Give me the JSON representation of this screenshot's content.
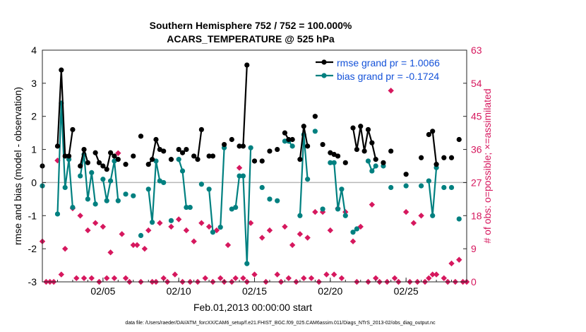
{
  "chart_data": {
    "type": "scatter",
    "title": "Southern Hemisphere 752 / 752 = 100.000%",
    "subtitle": "ACARS_TEMPERATURE @ 525 hPa",
    "xlabel": "Feb.01,2013 00:00:00 start",
    "ylabel": "rmse and bias (model - observation)",
    "ylabel_right": "# of obs: o=possible; ×=assimilated",
    "footnote": "data file: /Users/raeder/DAI/ATM_forcXX/CAM6_setup/f.e21.FHIST_BGC.f09_025.CAM6assim.011/Diags_NTrS_2013-02/obs_diag_output.nc",
    "xlim": [
      1,
      29
    ],
    "ylim": [
      -3,
      4
    ],
    "ylim_right": [
      0,
      63
    ],
    "grid": false,
    "legend_position": "top-right",
    "x_ticks": [
      {
        "x": 5,
        "label": "02/05"
      },
      {
        "x": 10,
        "label": "02/10"
      },
      {
        "x": 15,
        "label": "02/15"
      },
      {
        "x": 20,
        "label": "02/20"
      },
      {
        "x": 25,
        "label": "02/25"
      }
    ],
    "y_ticks": [
      -3,
      -2,
      -1,
      0,
      1,
      2,
      3,
      4
    ],
    "y_ticks_right": [
      0,
      9,
      18,
      27,
      36,
      45,
      54,
      63
    ],
    "colors": {
      "rmse": "#000000",
      "bias": "#008080",
      "obs": "#d6185e",
      "zero_line": "#b8b8b8"
    },
    "series": [
      {
        "name": "rmse grand pr = 1.0066",
        "marker": "dot",
        "values": [
          [
            1.0,
            0.5
          ],
          [
            2.0,
            1.1
          ],
          [
            2.25,
            3.4
          ],
          [
            2.5,
            0.8
          ],
          [
            2.75,
            0.8
          ],
          [
            3.0,
            1.6
          ],
          [
            3.5,
            0.5
          ],
          [
            3.75,
            1.0
          ],
          [
            4.0,
            0.6
          ],
          [
            4.5,
            0.9
          ],
          [
            4.75,
            0.6
          ],
          [
            5.0,
            0.5
          ],
          [
            5.25,
            0.4
          ],
          [
            5.5,
            0.9
          ],
          [
            5.75,
            0.8
          ],
          [
            6.0,
            0.7
          ],
          [
            6.5,
            0.55
          ],
          [
            7.0,
            0.8
          ],
          [
            7.5,
            1.4
          ],
          [
            8.0,
            0.55
          ],
          [
            8.25,
            0.7
          ],
          [
            8.5,
            1.3
          ],
          [
            8.75,
            1.0
          ],
          [
            9.0,
            0.95
          ],
          [
            9.5,
            0.7
          ],
          [
            10.0,
            1.0
          ],
          [
            10.25,
            0.9
          ],
          [
            10.5,
            1.0
          ],
          [
            11.0,
            0.8
          ],
          [
            11.25,
            0.7
          ],
          [
            11.5,
            1.6
          ],
          [
            12.0,
            0.8
          ],
          [
            12.25,
            0.8
          ],
          [
            13.0,
            1.15
          ],
          [
            13.5,
            1.3
          ],
          [
            14.0,
            1.1
          ],
          [
            14.25,
            1.1
          ],
          [
            14.5,
            3.55
          ],
          [
            15.0,
            0.65
          ],
          [
            15.5,
            0.65
          ],
          [
            16.0,
            0.95
          ],
          [
            16.5,
            1.0
          ],
          [
            17.0,
            1.5
          ],
          [
            17.25,
            1.3
          ],
          [
            17.5,
            1.3
          ],
          [
            18.0,
            0.7
          ],
          [
            18.25,
            1.7
          ],
          [
            18.5,
            1.1
          ],
          [
            19.0,
            2.0
          ],
          [
            19.5,
            1.15
          ],
          [
            20.0,
            0.9
          ],
          [
            20.25,
            0.85
          ],
          [
            20.5,
            0.8
          ],
          [
            21.0,
            0.6
          ],
          [
            21.5,
            1.65
          ],
          [
            21.75,
            1.0
          ],
          [
            22.0,
            1.7
          ],
          [
            22.25,
            0.95
          ],
          [
            22.5,
            1.6
          ],
          [
            22.75,
            1.2
          ],
          [
            23.0,
            0.7
          ],
          [
            23.5,
            0.6
          ],
          [
            24.0,
            0.95
          ],
          [
            25.0,
            0.25
          ],
          [
            26.0,
            0.75
          ],
          [
            26.5,
            1.45
          ],
          [
            26.75,
            1.55
          ],
          [
            27.0,
            0.55
          ],
          [
            27.5,
            0.75
          ],
          [
            28.0,
            0.75
          ],
          [
            28.5,
            1.3
          ]
        ]
      },
      {
        "name": "bias grand pr = -0.1724",
        "marker": "dot",
        "values": [
          [
            1.0,
            -0.1
          ],
          [
            2.0,
            -0.95
          ],
          [
            2.25,
            2.4
          ],
          [
            2.5,
            -0.15
          ],
          [
            2.75,
            0.7
          ],
          [
            3.0,
            -0.75
          ],
          [
            3.5,
            0.2
          ],
          [
            3.75,
            0.85
          ],
          [
            4.0,
            -0.5
          ],
          [
            4.25,
            0.3
          ],
          [
            4.5,
            -0.65
          ],
          [
            5.0,
            0.1
          ],
          [
            5.25,
            -0.55
          ],
          [
            5.5,
            0.05
          ],
          [
            5.75,
            0.65
          ],
          [
            6.0,
            -0.55
          ],
          [
            6.5,
            -0.35
          ],
          [
            7.0,
            -0.4
          ],
          [
            7.5,
            -1.6
          ],
          [
            8.0,
            -0.2
          ],
          [
            8.25,
            -1.2
          ],
          [
            8.5,
            0.65
          ],
          [
            8.75,
            0.05
          ],
          [
            9.0,
            0.0
          ],
          [
            9.5,
            -1.15
          ],
          [
            10.0,
            0.7
          ],
          [
            10.25,
            0.35
          ],
          [
            10.5,
            -0.75
          ],
          [
            10.75,
            -0.75
          ],
          [
            11.5,
            -0.05
          ],
          [
            12.0,
            -0.2
          ],
          [
            12.25,
            -1.5
          ],
          [
            12.75,
            -1.35
          ],
          [
            13.0,
            1.05
          ],
          [
            13.5,
            -0.8
          ],
          [
            13.75,
            -0.75
          ],
          [
            14.0,
            0.2
          ],
          [
            14.25,
            0.2
          ],
          [
            14.5,
            -2.45
          ],
          [
            14.75,
            1.05
          ],
          [
            15.5,
            -0.15
          ],
          [
            16.0,
            -0.5
          ],
          [
            16.5,
            -0.55
          ],
          [
            17.0,
            1.25
          ],
          [
            17.25,
            1.25
          ],
          [
            17.5,
            1.1
          ],
          [
            18.0,
            -1.0
          ],
          [
            18.25,
            1.45
          ],
          [
            18.5,
            0.1
          ],
          [
            19.0,
            1.55
          ],
          [
            19.5,
            -0.8
          ],
          [
            20.0,
            0.6
          ],
          [
            20.25,
            0.6
          ],
          [
            20.5,
            -0.8
          ],
          [
            20.75,
            -0.2
          ],
          [
            21.0,
            -1.0
          ],
          [
            21.5,
            -1.5
          ],
          [
            21.75,
            -1.4
          ],
          [
            22.5,
            0.65
          ],
          [
            22.75,
            0.35
          ],
          [
            23.0,
            0.5
          ],
          [
            23.5,
            0.5
          ],
          [
            24.0,
            -0.15
          ],
          [
            25.0,
            -0.1
          ],
          [
            26.0,
            -0.1
          ],
          [
            26.5,
            0.05
          ],
          [
            26.75,
            -1.0
          ],
          [
            27.0,
            0.45
          ],
          [
            27.5,
            -0.15
          ],
          [
            28.0,
            -0.15
          ],
          [
            28.5,
            -1.1
          ]
        ]
      },
      {
        "name": "possible obs",
        "marker": "o",
        "axis": "right",
        "values": []
      },
      {
        "name": "assimilated obs",
        "marker": "x",
        "axis": "right",
        "values": [
          [
            1.0,
            11
          ],
          [
            1.25,
            0
          ],
          [
            1.5,
            0
          ],
          [
            1.75,
            0
          ],
          [
            2.0,
            33
          ],
          [
            2.25,
            2
          ],
          [
            2.5,
            9
          ],
          [
            3.0,
            20
          ],
          [
            3.25,
            1
          ],
          [
            3.5,
            18
          ],
          [
            3.75,
            1
          ],
          [
            4.0,
            14
          ],
          [
            4.25,
            1
          ],
          [
            4.5,
            16
          ],
          [
            4.75,
            0
          ],
          [
            5.0,
            15
          ],
          [
            5.25,
            1
          ],
          [
            5.5,
            8
          ],
          [
            5.75,
            1
          ],
          [
            6.0,
            35
          ],
          [
            6.25,
            13
          ],
          [
            6.5,
            1
          ],
          [
            6.75,
            0
          ],
          [
            7.0,
            10
          ],
          [
            7.25,
            10
          ],
          [
            7.5,
            0
          ],
          [
            7.75,
            9
          ],
          [
            8.0,
            14
          ],
          [
            8.25,
            0
          ],
          [
            8.5,
            0
          ],
          [
            8.75,
            16
          ],
          [
            9.0,
            1
          ],
          [
            9.25,
            0
          ],
          [
            9.5,
            15
          ],
          [
            9.75,
            2
          ],
          [
            10.0,
            17
          ],
          [
            10.25,
            0
          ],
          [
            10.5,
            14
          ],
          [
            10.75,
            0
          ],
          [
            11.0,
            11
          ],
          [
            11.25,
            0
          ],
          [
            11.5,
            16
          ],
          [
            11.75,
            1
          ],
          [
            12.0,
            15
          ],
          [
            12.25,
            0
          ],
          [
            12.5,
            14
          ],
          [
            12.75,
            1
          ],
          [
            13.0,
            0
          ],
          [
            13.25,
            10
          ],
          [
            13.5,
            0
          ],
          [
            13.75,
            1
          ],
          [
            14.0,
            31
          ],
          [
            14.25,
            1
          ],
          [
            14.5,
            0
          ],
          [
            14.75,
            16
          ],
          [
            15.0,
            2
          ],
          [
            15.5,
            12
          ],
          [
            15.75,
            0
          ],
          [
            16.0,
            14
          ],
          [
            16.5,
            2
          ],
          [
            16.75,
            0
          ],
          [
            17.0,
            15
          ],
          [
            17.25,
            1
          ],
          [
            17.5,
            10
          ],
          [
            17.75,
            0
          ],
          [
            18.0,
            13
          ],
          [
            18.25,
            1
          ],
          [
            18.5,
            12
          ],
          [
            18.75,
            1
          ],
          [
            19.0,
            19
          ],
          [
            19.25,
            0
          ],
          [
            19.5,
            19
          ],
          [
            19.75,
            2
          ],
          [
            20.0,
            14
          ],
          [
            20.25,
            2
          ],
          [
            20.5,
            20
          ],
          [
            20.75,
            1
          ],
          [
            21.0,
            19
          ],
          [
            21.5,
            11
          ],
          [
            21.75,
            0
          ],
          [
            22.0,
            15
          ],
          [
            22.5,
            0
          ],
          [
            22.75,
            21
          ],
          [
            23.0,
            1
          ],
          [
            23.25,
            0
          ],
          [
            23.75,
            0
          ],
          [
            24.0,
            52
          ],
          [
            24.25,
            1
          ],
          [
            24.5,
            0
          ],
          [
            25.0,
            19
          ],
          [
            25.25,
            0
          ],
          [
            25.5,
            16
          ],
          [
            25.75,
            0
          ],
          [
            26.0,
            18
          ],
          [
            26.25,
            0
          ],
          [
            26.5,
            1
          ],
          [
            26.75,
            2
          ],
          [
            27.0,
            2
          ],
          [
            27.5,
            1
          ],
          [
            27.75,
            0
          ],
          [
            28.0,
            5
          ],
          [
            28.25,
            0
          ],
          [
            28.5,
            6
          ],
          [
            28.75,
            0
          ],
          [
            29.0,
            0
          ]
        ]
      }
    ]
  }
}
